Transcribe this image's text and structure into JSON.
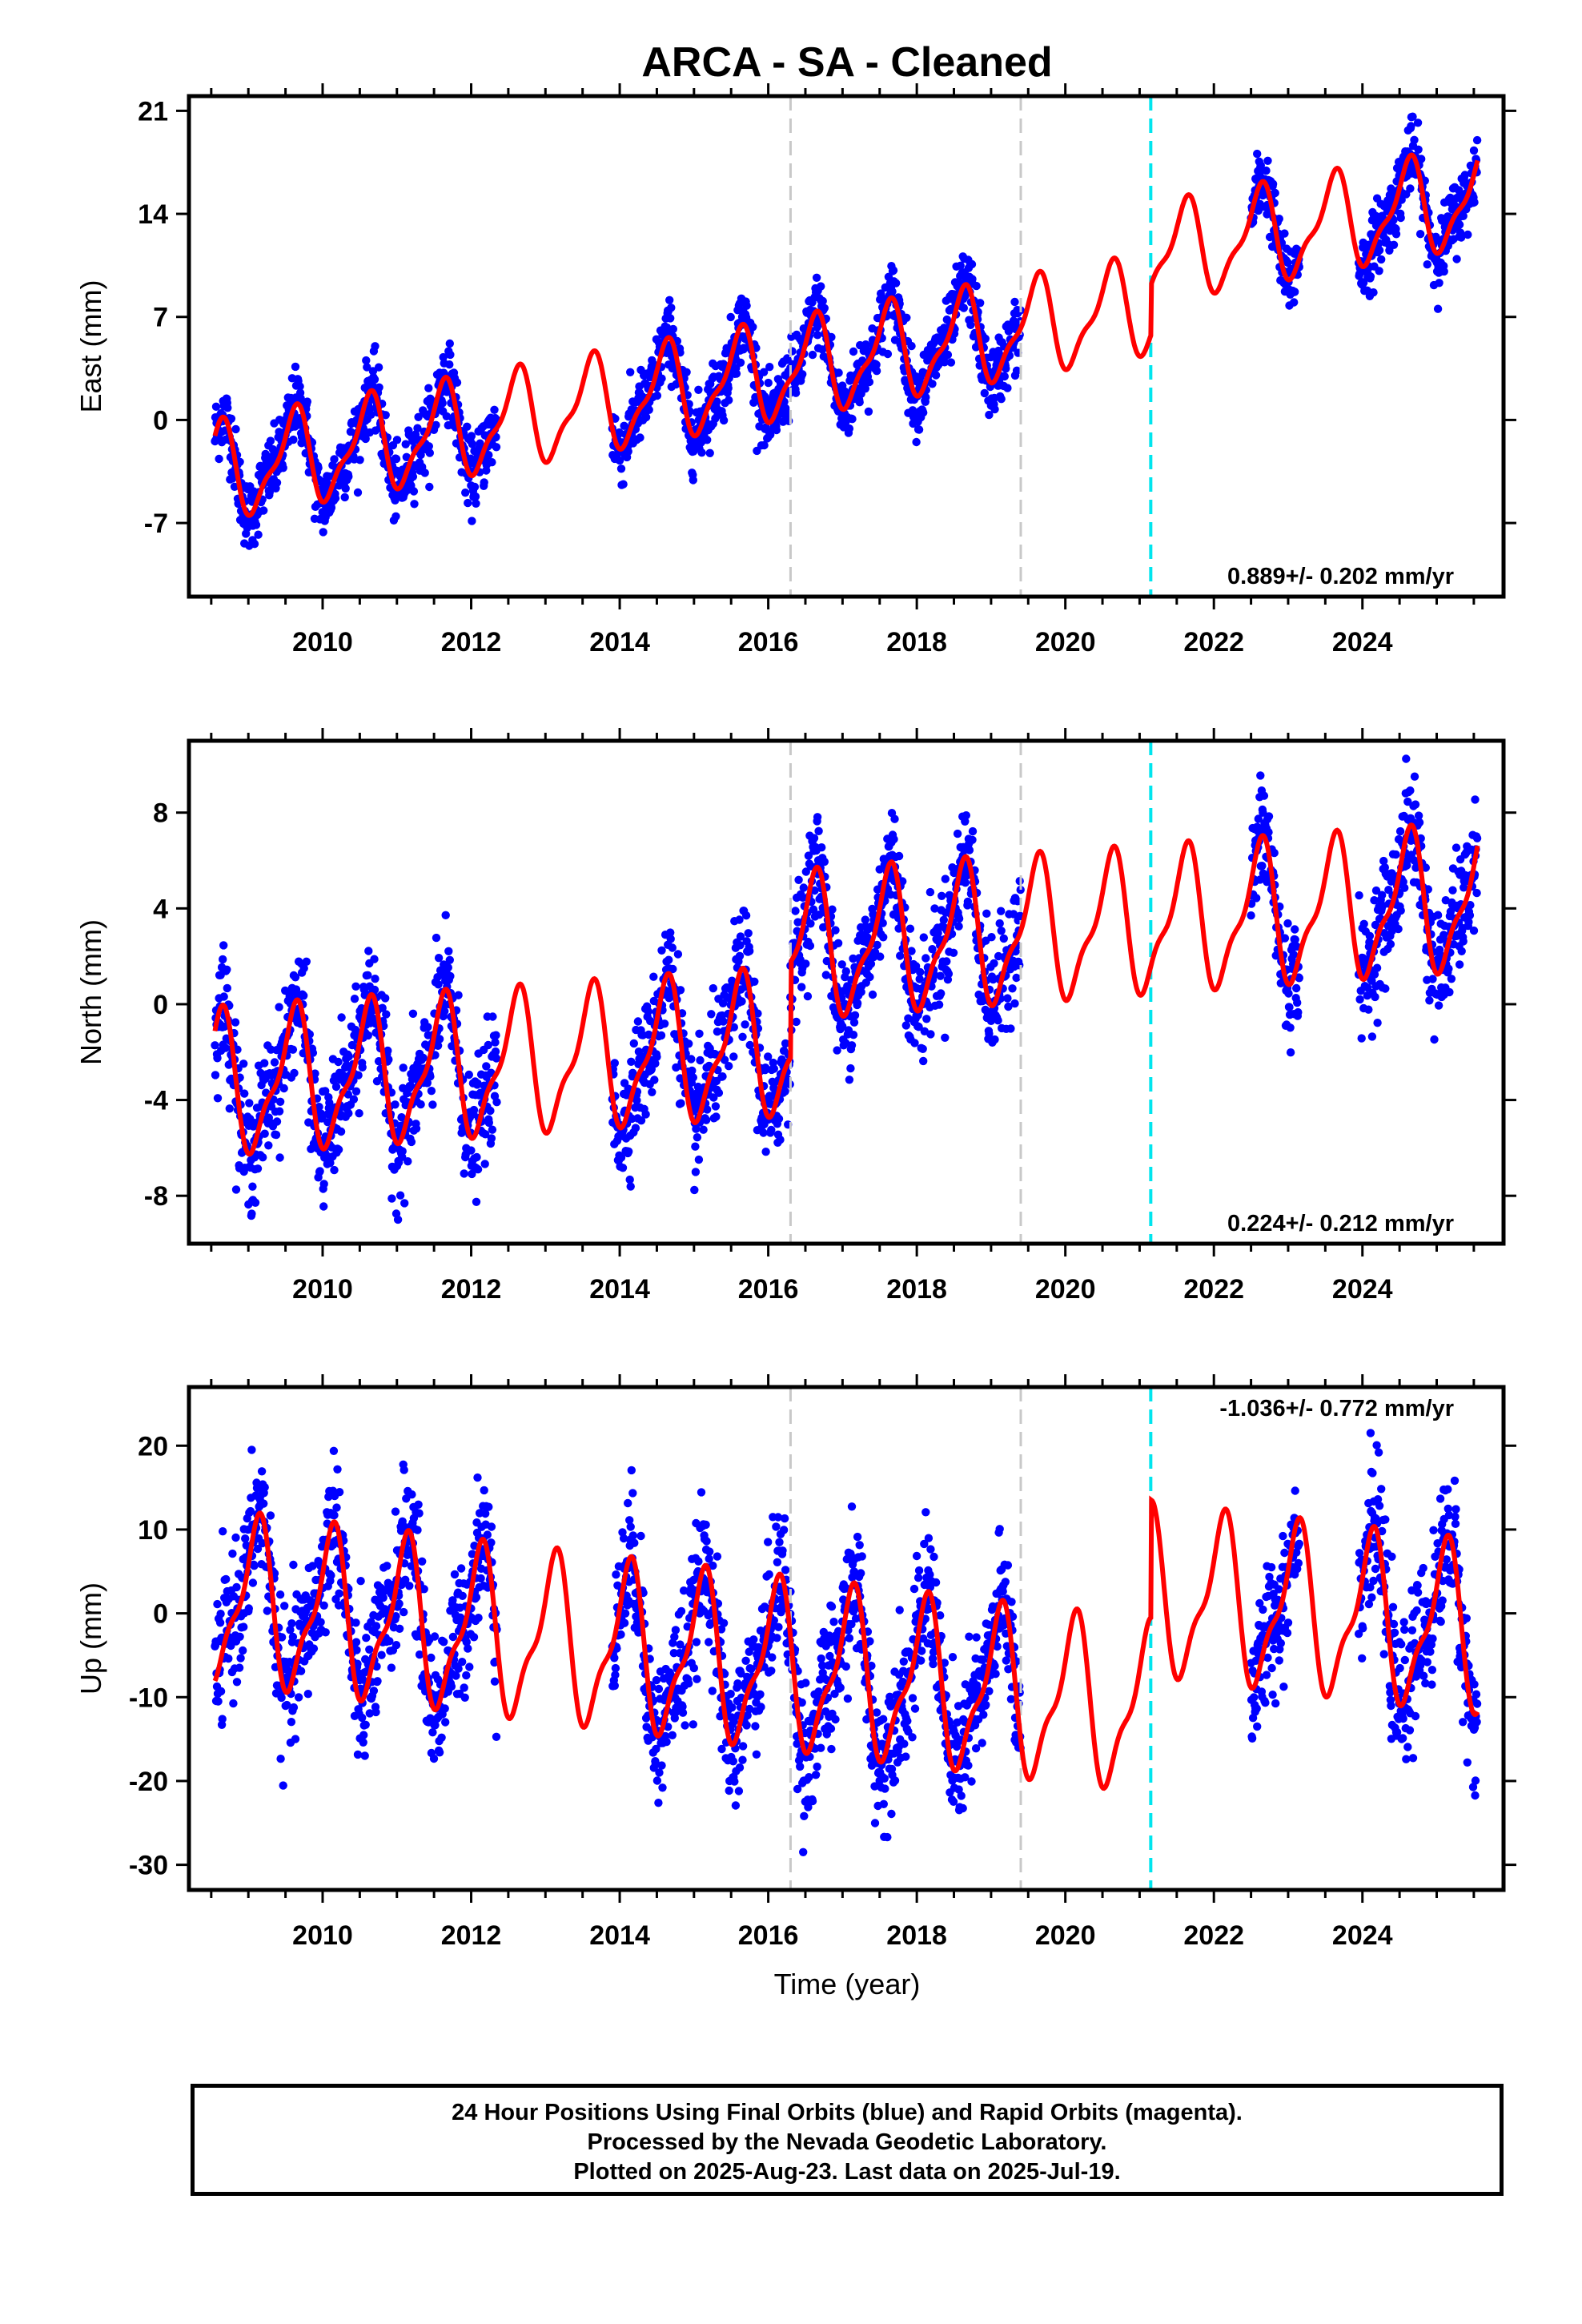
{
  "title": "ARCA  - SA - Cleaned",
  "xlabel": "Time (year)",
  "footer": {
    "line1": "24 Hour Positions Using Final Orbits (blue) and Rapid Orbits (magenta).",
    "line2": "Processed by the Nevada Geodetic Laboratory.",
    "line3": "Plotted on 2025-Aug-23. Last data on 2025-Jul-19."
  },
  "colors": {
    "final_orbits": "#0000ff",
    "rapid_orbits": "#ff00ff",
    "model": "#ff0000",
    "antenna_change": "#c8c8c8",
    "equipment_change": "#00e5ee"
  },
  "chart_data": [
    {
      "type": "scatter",
      "component": "east",
      "ylabel": "East (mm)",
      "xlim": [
        2008.2,
        2025.9
      ],
      "ylim": [
        -12,
        22
      ],
      "xticks": [
        "2010",
        "2012",
        "2014",
        "2016",
        "2018",
        "2020",
        "2022",
        "2024"
      ],
      "yticks": [
        "-7",
        "0",
        "7",
        "14",
        "21"
      ],
      "ytick_values": [
        -7,
        0,
        7,
        14,
        21
      ],
      "rate_label": "0.889+/- 0.202 mm/yr",
      "rate_position": "bottom-right",
      "vertical_lines": [
        {
          "x": 2016.3,
          "style": "gray-dashed"
        },
        {
          "x": 2019.4,
          "style": "gray-dashed"
        },
        {
          "x": 2021.15,
          "style": "cyan-dashed"
        }
      ],
      "model": {
        "trend": -3.2,
        "rate": 0.9,
        "amplitude": 3.0,
        "phase_peak": 0.6,
        "offsets": [
          {
            "x": 2021.15,
            "dy": 3.4
          }
        ]
      },
      "data_spans": [
        [
          2008.55,
          2012.35
        ],
        [
          2013.9,
          2016.3
        ],
        [
          2016.3,
          2019.4
        ],
        [
          2022.5,
          2023.15
        ],
        [
          2023.95,
          2025.55
        ]
      ],
      "scatter_sd": 1.2
    },
    {
      "type": "scatter",
      "component": "north",
      "ylabel": "North (mm)",
      "xlim": [
        2008.2,
        2025.9
      ],
      "ylim": [
        -10,
        11
      ],
      "xticks": [
        "2010",
        "2012",
        "2014",
        "2016",
        "2018",
        "2020",
        "2022",
        "2024"
      ],
      "yticks": [
        "-8",
        "-4",
        "0",
        "4",
        "8"
      ],
      "ytick_values": [
        -8,
        -4,
        0,
        4,
        8
      ],
      "rate_label": "0.224+/- 0.212 mm/yr",
      "rate_position": "bottom-right",
      "vertical_lines": [
        {
          "x": 2016.3,
          "style": "gray-dashed"
        },
        {
          "x": 2019.4,
          "style": "gray-dashed"
        },
        {
          "x": 2021.15,
          "style": "cyan-dashed"
        }
      ],
      "model": {
        "trend": -3.3,
        "rate": 0.22,
        "amplitude": 2.7,
        "phase_peak": 0.6,
        "offsets": [
          {
            "x": 2016.3,
            "dy": 4.0
          }
        ]
      },
      "data_spans": [
        [
          2008.55,
          2012.35
        ],
        [
          2013.9,
          2016.3
        ],
        [
          2016.3,
          2019.4
        ],
        [
          2022.5,
          2023.15
        ],
        [
          2023.95,
          2025.55
        ]
      ],
      "scatter_sd": 1.2
    },
    {
      "type": "scatter",
      "component": "up",
      "ylabel": "Up (mm)",
      "xlim": [
        2008.2,
        2025.9
      ],
      "ylim": [
        -33,
        27
      ],
      "xticks": [
        "2010",
        "2012",
        "2014",
        "2016",
        "2018",
        "2020",
        "2022",
        "2024"
      ],
      "yticks": [
        "-30",
        "-20",
        "-10",
        "0",
        "10",
        "20"
      ],
      "ytick_values": [
        -30,
        -20,
        -10,
        0,
        10,
        20
      ],
      "rate_label": "-1.036+/- 0.772 mm/yr",
      "rate_position": "top-right",
      "vertical_lines": [
        {
          "x": 2016.3,
          "style": "gray-dashed"
        },
        {
          "x": 2019.4,
          "style": "gray-dashed"
        },
        {
          "x": 2021.15,
          "style": "cyan-dashed"
        }
      ],
      "model": {
        "trend": 1.0,
        "rate": -1.04,
        "amplitude": 9.0,
        "phase_peak": 0.1,
        "offsets": [
          {
            "x": 2021.15,
            "dy": 14.0
          }
        ]
      },
      "data_spans": [
        [
          2008.55,
          2012.35
        ],
        [
          2013.9,
          2016.3
        ],
        [
          2016.3,
          2019.4
        ],
        [
          2022.5,
          2023.15
        ],
        [
          2023.95,
          2025.55
        ]
      ],
      "scatter_sd": 4.0
    }
  ]
}
